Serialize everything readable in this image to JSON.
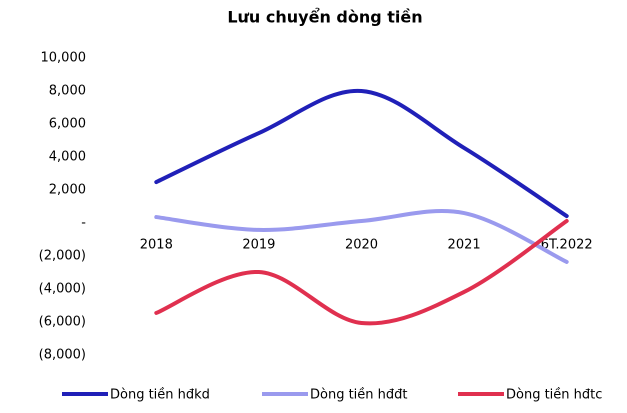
{
  "chart_data": {
    "type": "line",
    "title": "Lưu chuyển dòng tiền",
    "categories": [
      "2018",
      "2019",
      "2020",
      "2021",
      "6T.2022"
    ],
    "series": [
      {
        "name": "Dòng tiền hđkd",
        "color": "#2020b8",
        "values": [
          2480,
          5450,
          8000,
          4550,
          420
        ]
      },
      {
        "name": "Dòng tiền hđđt",
        "color": "#9a9aee",
        "values": [
          360,
          -420,
          120,
          600,
          -2360
        ]
      },
      {
        "name": "Dòng tiền hđtc",
        "color": "#e0304f",
        "values": [
          -5450,
          -2970,
          -6060,
          -4180,
          120
        ]
      }
    ],
    "ylim": [
      -8000,
      10000
    ],
    "yticks": [
      {
        "value": 10000,
        "label": "10,000"
      },
      {
        "value": 8000,
        "label": "8,000"
      },
      {
        "value": 6000,
        "label": "6,000"
      },
      {
        "value": 4000,
        "label": "4,000"
      },
      {
        "value": 2000,
        "label": "2,000"
      },
      {
        "value": 0,
        "label": "-"
      },
      {
        "value": -2000,
        "label": "(2,000)"
      },
      {
        "value": -4000,
        "label": "(4,000)"
      },
      {
        "value": -6000,
        "label": "(6,000)"
      },
      {
        "value": -8000,
        "label": "(8,000)"
      }
    ],
    "grid": false,
    "legend": "bottom"
  }
}
